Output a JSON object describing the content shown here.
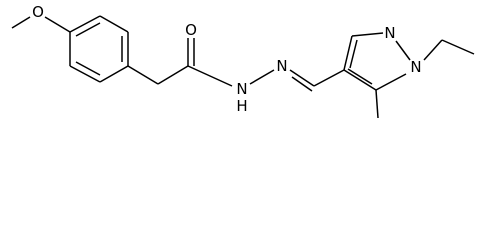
{
  "atoms": {
    "methoxy_oxygen": "O",
    "carbonyl_oxygen": "O",
    "amide_nitrogen": "N",
    "amide_hydrogen": "H",
    "imine_nitrogen": "N",
    "pyrazole_n2": "N",
    "pyrazole_n1": "N"
  }
}
